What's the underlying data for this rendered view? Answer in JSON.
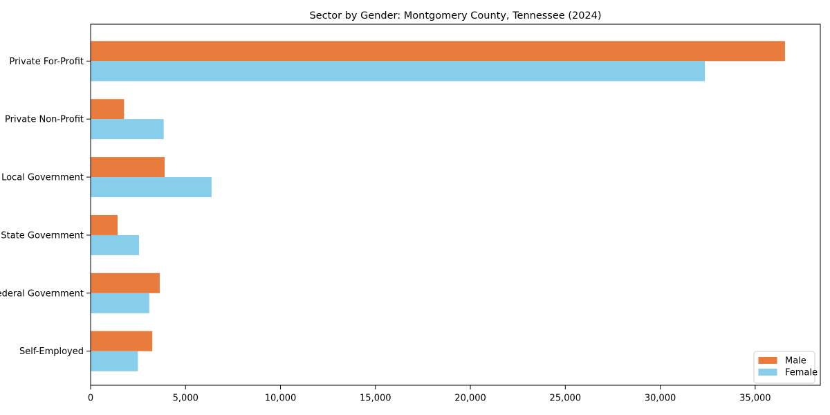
{
  "chart_data": {
    "type": "bar",
    "orientation": "horizontal",
    "title": "Sector by Gender: Montgomery County, Tennessee (2024)",
    "categories": [
      "Private For-Profit",
      "Private Non-Profit",
      "Local Government",
      "State Government",
      "Federal Government",
      "Self-Employed"
    ],
    "series": [
      {
        "name": "Male",
        "color": "#e97c3c",
        "values": [
          36570,
          1760,
          3900,
          1420,
          3640,
          3250
        ]
      },
      {
        "name": "Female",
        "color": "#87ceeb",
        "values": [
          32350,
          3850,
          6370,
          2550,
          3090,
          2490
        ]
      }
    ],
    "xlabel": "",
    "ylabel": "",
    "xlim": [
      0,
      38430
    ],
    "xticks": [
      0,
      5000,
      10000,
      15000,
      20000,
      25000,
      30000,
      35000
    ],
    "xtick_labels": [
      "0",
      "5,000",
      "10,000",
      "15,000",
      "20,000",
      "25,000",
      "30,000",
      "35,000"
    ],
    "grid": false,
    "legend_position": "lower right",
    "legend_labels": [
      "Male",
      "Female"
    ],
    "colors": {
      "male": "#e97c3c",
      "female": "#87ceeb",
      "spine": "#000000",
      "text": "#000000",
      "legend_border": "#cccccc",
      "background": "#ffffff"
    }
  }
}
